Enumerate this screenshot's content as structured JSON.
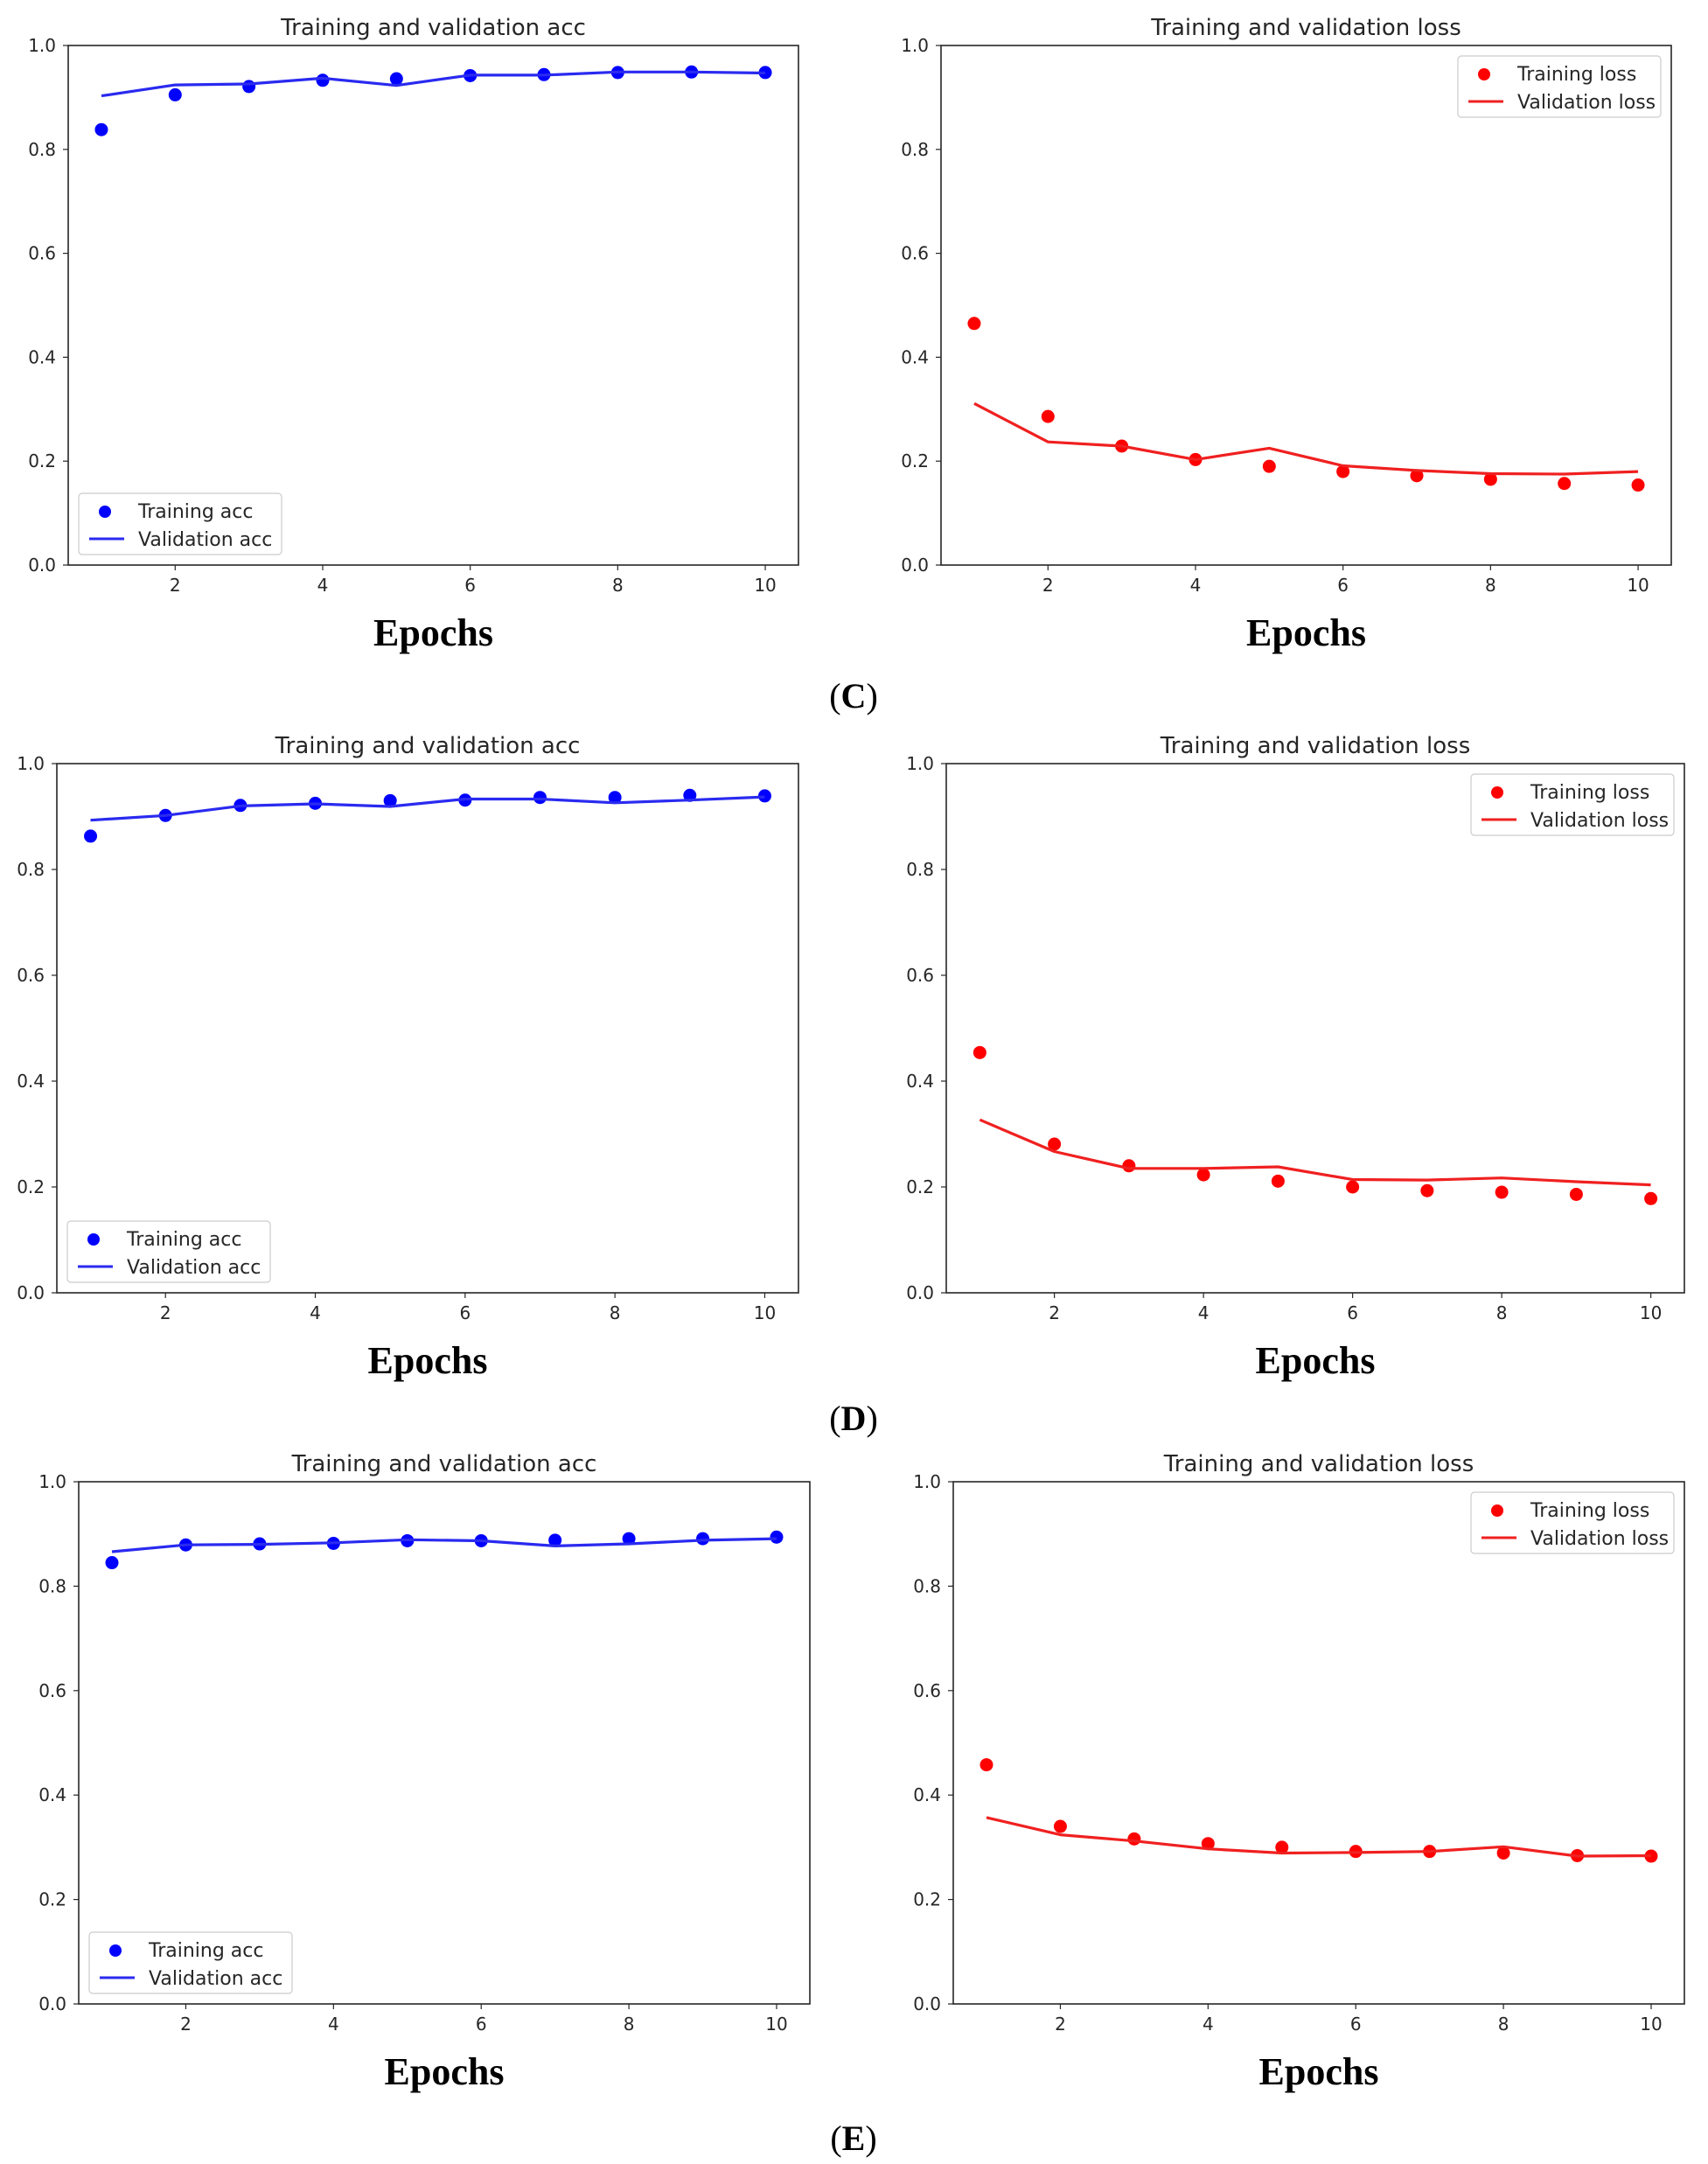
{
  "panels": [
    {
      "letter": "C"
    },
    {
      "letter": "D"
    },
    {
      "letter": "E"
    }
  ],
  "colors": {
    "acc": "#0000ff",
    "acc_line": "#2a2af0",
    "loss": "#ff0000",
    "loss_line": "#f02020"
  },
  "chart_data": [
    {
      "panel": "C",
      "type": "line",
      "title": "Training and validation acc",
      "xlabel": "Epochs",
      "ylabel": "",
      "x": [
        1,
        2,
        3,
        4,
        5,
        6,
        7,
        8,
        9,
        10
      ],
      "xticks": [
        2,
        4,
        6,
        8,
        10
      ],
      "yticks": [
        0.0,
        0.2,
        0.4,
        0.6,
        0.8,
        1.0
      ],
      "ylim": [
        0,
        1
      ],
      "xlim": [
        0.55,
        10.45
      ],
      "legend": "lower-left",
      "grid": false,
      "series": [
        {
          "name": "Training acc",
          "style": "points",
          "color": "#0000ff",
          "values": [
            0.838,
            0.905,
            0.921,
            0.933,
            0.936,
            0.942,
            0.944,
            0.948,
            0.949,
            0.948
          ]
        },
        {
          "name": "Validation acc",
          "style": "line",
          "color": "#2a2af0",
          "values": [
            0.903,
            0.924,
            0.926,
            0.937,
            0.923,
            0.943,
            0.943,
            0.949,
            0.949,
            0.947
          ]
        }
      ]
    },
    {
      "panel": "C",
      "type": "line",
      "title": "Training and validation loss",
      "xlabel": "Epochs",
      "ylabel": "",
      "x": [
        1,
        2,
        3,
        4,
        5,
        6,
        7,
        8,
        9,
        10
      ],
      "xticks": [
        2,
        4,
        6,
        8,
        10
      ],
      "yticks": [
        0.0,
        0.2,
        0.4,
        0.6,
        0.8,
        1.0
      ],
      "ylim": [
        0,
        1
      ],
      "xlim": [
        0.55,
        10.45
      ],
      "legend": "upper-right",
      "grid": false,
      "series": [
        {
          "name": "Training loss",
          "style": "points",
          "color": "#ff0000",
          "values": [
            0.465,
            0.286,
            0.229,
            0.203,
            0.19,
            0.18,
            0.172,
            0.165,
            0.157,
            0.154
          ]
        },
        {
          "name": "Validation loss",
          "style": "line",
          "color": "#f02020",
          "values": [
            0.311,
            0.237,
            0.229,
            0.203,
            0.225,
            0.191,
            0.182,
            0.176,
            0.175,
            0.18
          ]
        }
      ]
    },
    {
      "panel": "D",
      "type": "line",
      "title": "Training and validation acc",
      "xlabel": "Epochs",
      "ylabel": "",
      "x": [
        1,
        2,
        3,
        4,
        5,
        6,
        7,
        8,
        9,
        10
      ],
      "xticks": [
        2,
        4,
        6,
        8,
        10
      ],
      "yticks": [
        0.0,
        0.2,
        0.4,
        0.6,
        0.8,
        1.0
      ],
      "ylim": [
        0,
        1
      ],
      "xlim": [
        0.55,
        10.45
      ],
      "legend": "lower-left",
      "grid": false,
      "series": [
        {
          "name": "Training acc",
          "style": "points",
          "color": "#0000ff",
          "values": [
            0.863,
            0.902,
            0.921,
            0.925,
            0.93,
            0.931,
            0.936,
            0.936,
            0.94,
            0.939
          ]
        },
        {
          "name": "Validation acc",
          "style": "line",
          "color": "#2a2af0",
          "values": [
            0.893,
            0.902,
            0.92,
            0.924,
            0.919,
            0.933,
            0.933,
            0.926,
            0.931,
            0.937
          ]
        }
      ]
    },
    {
      "panel": "D",
      "type": "line",
      "title": "Training and validation loss",
      "xlabel": "Epochs",
      "ylabel": "",
      "x": [
        1,
        2,
        3,
        4,
        5,
        6,
        7,
        8,
        9,
        10
      ],
      "xticks": [
        2,
        4,
        6,
        8,
        10
      ],
      "yticks": [
        0.0,
        0.2,
        0.4,
        0.6,
        0.8,
        1.0
      ],
      "ylim": [
        0,
        1
      ],
      "xlim": [
        0.55,
        10.45
      ],
      "legend": "upper-right",
      "grid": false,
      "series": [
        {
          "name": "Training loss",
          "style": "points",
          "color": "#ff0000",
          "values": [
            0.454,
            0.281,
            0.24,
            0.223,
            0.211,
            0.2,
            0.193,
            0.19,
            0.186,
            0.178
          ]
        },
        {
          "name": "Validation loss",
          "style": "line",
          "color": "#f02020",
          "values": [
            0.327,
            0.267,
            0.235,
            0.235,
            0.238,
            0.214,
            0.213,
            0.217,
            0.21,
            0.204
          ]
        }
      ]
    },
    {
      "panel": "E",
      "type": "line",
      "title": "Training and validation acc",
      "xlabel": "Epochs",
      "ylabel": "",
      "x": [
        1,
        2,
        3,
        4,
        5,
        6,
        7,
        8,
        9,
        10
      ],
      "xticks": [
        2,
        4,
        6,
        8,
        10
      ],
      "yticks": [
        0.0,
        0.2,
        0.4,
        0.6,
        0.8,
        1.0
      ],
      "ylim": [
        0,
        1
      ],
      "xlim": [
        0.55,
        10.45
      ],
      "legend": "lower-left",
      "grid": false,
      "series": [
        {
          "name": "Training acc",
          "style": "points",
          "color": "#0000ff",
          "values": [
            0.845,
            0.879,
            0.881,
            0.882,
            0.887,
            0.887,
            0.888,
            0.891,
            0.891,
            0.894
          ]
        },
        {
          "name": "Validation acc",
          "style": "line",
          "color": "#2a2af0",
          "values": [
            0.866,
            0.879,
            0.88,
            0.883,
            0.889,
            0.887,
            0.877,
            0.881,
            0.888,
            0.891
          ]
        }
      ]
    },
    {
      "panel": "E",
      "type": "line",
      "title": "Training and validation loss",
      "xlabel": "Epochs",
      "ylabel": "",
      "x": [
        1,
        2,
        3,
        4,
        5,
        6,
        7,
        8,
        9,
        10
      ],
      "xticks": [
        2,
        4,
        6,
        8,
        10
      ],
      "yticks": [
        0.0,
        0.2,
        0.4,
        0.6,
        0.8,
        1.0
      ],
      "ylim": [
        0,
        1
      ],
      "xlim": [
        0.55,
        10.45
      ],
      "legend": "upper-right",
      "grid": false,
      "series": [
        {
          "name": "Training loss",
          "style": "points",
          "color": "#ff0000",
          "values": [
            0.458,
            0.34,
            0.316,
            0.307,
            0.3,
            0.292,
            0.292,
            0.289,
            0.284,
            0.283
          ]
        },
        {
          "name": "Validation loss",
          "style": "line",
          "color": "#f02020",
          "values": [
            0.357,
            0.324,
            0.312,
            0.297,
            0.289,
            0.29,
            0.292,
            0.301,
            0.283,
            0.284
          ]
        }
      ]
    }
  ]
}
